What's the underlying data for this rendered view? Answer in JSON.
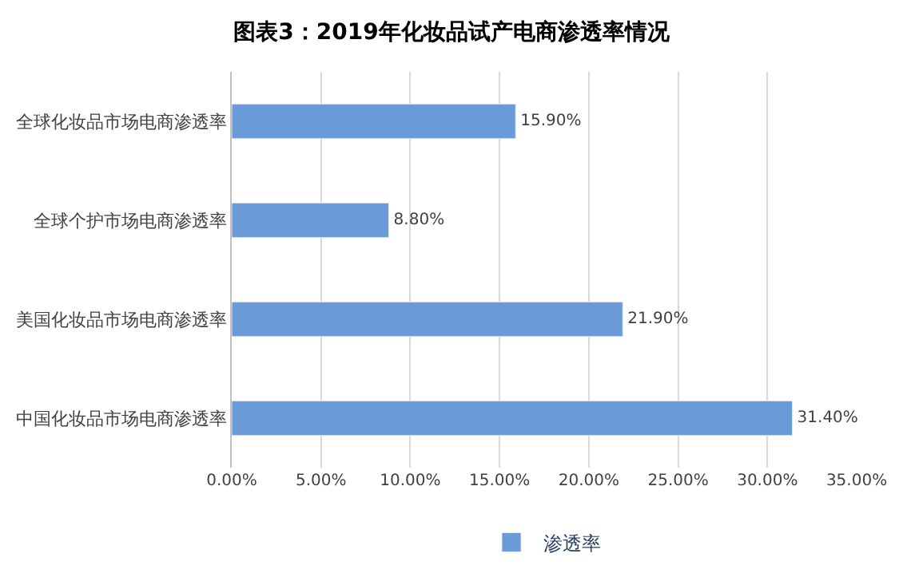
{
  "chart_data": {
    "type": "bar",
    "orientation": "horizontal",
    "title": "图表3：2019年化妆品试产电商渗透率情况",
    "categories": [
      "全球化妆品市场电商渗透率",
      "全球个护市场电商渗透率",
      "美国化妆品市场电商渗透率",
      "中国化妆品市场电商渗透率"
    ],
    "series": [
      {
        "name": "渗透率",
        "color": "#6a9bd8",
        "values": [
          15.9,
          8.8,
          21.9,
          31.4
        ],
        "value_labels": [
          "15.90%",
          "8.80%",
          "21.90%",
          "31.40%"
        ]
      }
    ],
    "xlim": [
      0,
      35
    ],
    "xticks": [
      {
        "value": 0,
        "label": "0.00%"
      },
      {
        "value": 5,
        "label": "5.00%"
      },
      {
        "value": 10,
        "label": "10.00%"
      },
      {
        "value": 15,
        "label": "15.00%"
      },
      {
        "value": 20,
        "label": "20.00%"
      },
      {
        "value": 25,
        "label": "25.00%"
      },
      {
        "value": 30,
        "label": "30.00%"
      },
      {
        "value": 35,
        "label": "35.00%"
      }
    ],
    "grid": "x",
    "legend": "bottom"
  }
}
